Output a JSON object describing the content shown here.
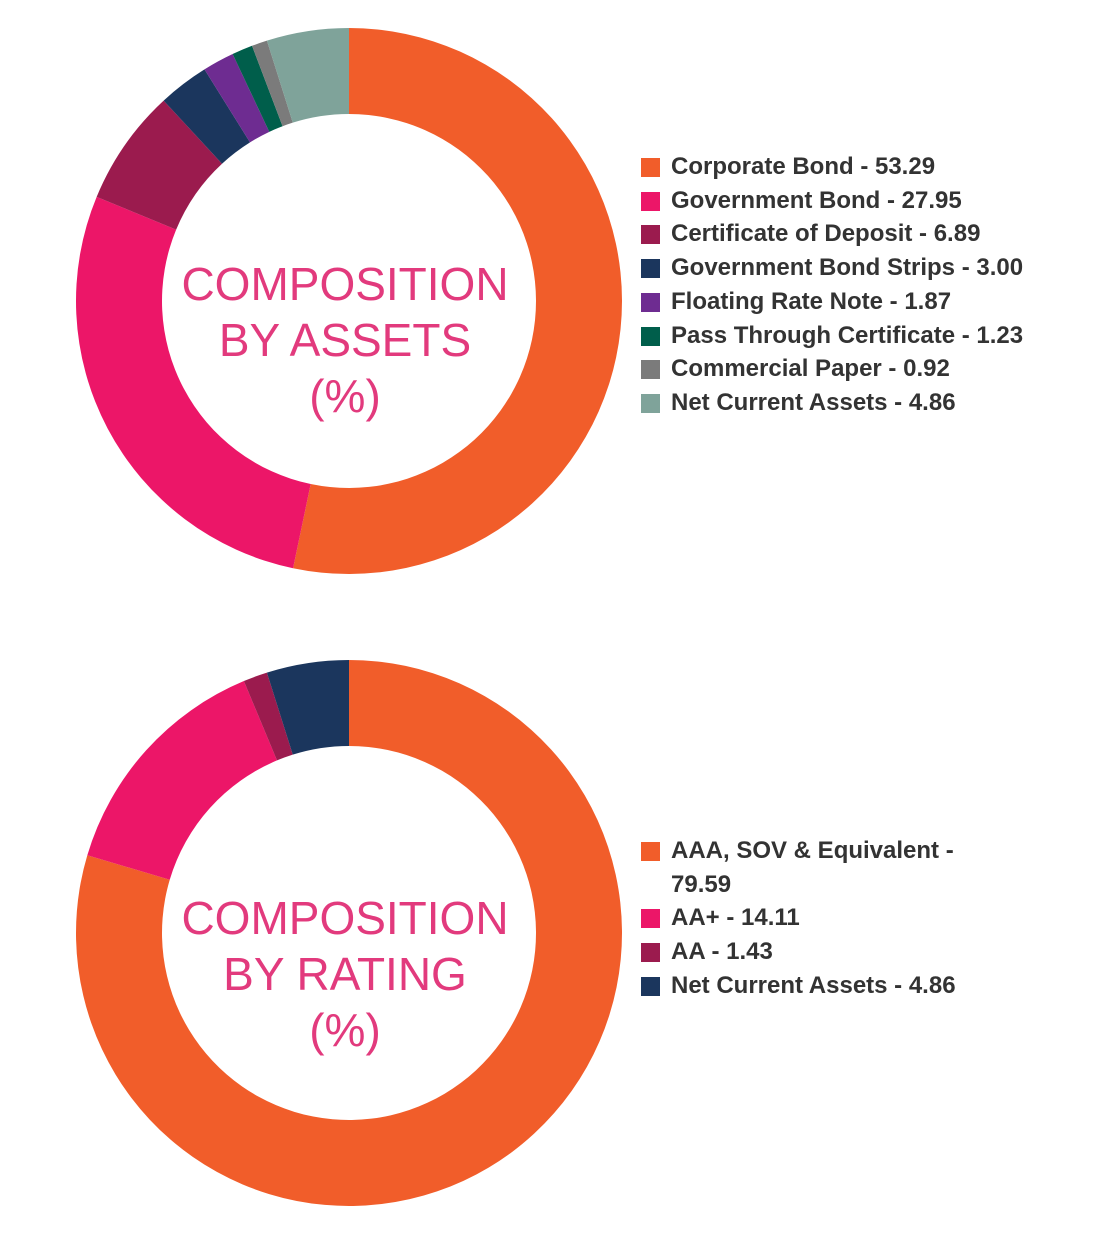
{
  "chart_data": [
    {
      "type": "pie",
      "title": "COMPOSITION BY ASSETS (%)",
      "title_lines": [
        "COMPOSITION",
        "BY ASSETS",
        "(%)"
      ],
      "legend_position": "right",
      "slices": [
        {
          "label": "Corporate Bond",
          "value": 53.29,
          "legend_text": "Corporate Bond - 53.29",
          "color": "#f15d2a"
        },
        {
          "label": "Government Bond",
          "value": 27.95,
          "legend_text": "Government Bond - 27.95",
          "color": "#ec1668"
        },
        {
          "label": "Certificate of Deposit",
          "value": 6.89,
          "legend_text": "Certificate of Deposit - 6.89",
          "color": "#9b1b4e"
        },
        {
          "label": "Government Bond Strips",
          "value": 3.0,
          "legend_text": "Government Bond Strips - 3.00",
          "color": "#1b365d"
        },
        {
          "label": "Floating Rate Note",
          "value": 1.87,
          "legend_text": "Floating Rate Note - 1.87",
          "color": "#6e2c91"
        },
        {
          "label": "Pass Through Certificate",
          "value": 1.23,
          "legend_text": "Pass Through Certificate - 1.23",
          "color": "#005e4b"
        },
        {
          "label": "Commercial Paper",
          "value": 0.92,
          "legend_text": "Commercial Paper - 0.92",
          "color": "#7b7b7b"
        },
        {
          "label": "Net Current Assets",
          "value": 4.86,
          "legend_text": "Net Current Assets - 4.86",
          "color": "#7fa39a"
        }
      ]
    },
    {
      "type": "pie",
      "title": "COMPOSITION BY RATING (%)",
      "title_lines": [
        "COMPOSITION",
        "BY RATING",
        "(%)"
      ],
      "legend_position": "right",
      "slices": [
        {
          "label": "AAA, SOV & Equivalent",
          "value": 79.59,
          "legend_text": "AAA, SOV & Equivalent - 79.59",
          "color": "#f15d2a"
        },
        {
          "label": "AA+",
          "value": 14.11,
          "legend_text": "AA+ - 14.11",
          "color": "#ec1668"
        },
        {
          "label": "AA",
          "value": 1.43,
          "legend_text": "AA - 1.43",
          "color": "#9b1b4e"
        },
        {
          "label": "Net Current Assets",
          "value": 4.86,
          "legend_text": "Net Current Assets - 4.86",
          "color": "#1b365d"
        }
      ]
    }
  ]
}
